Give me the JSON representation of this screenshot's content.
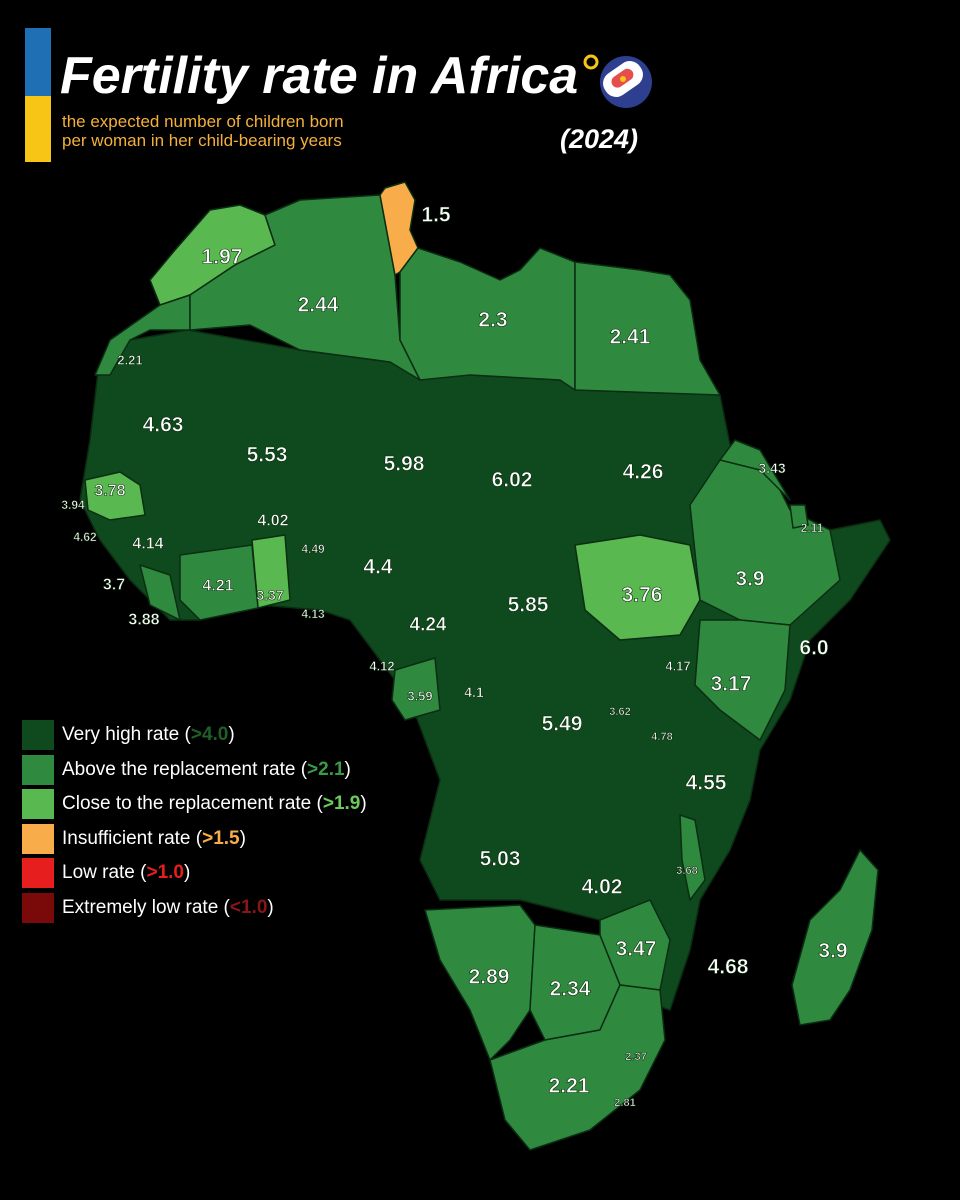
{
  "header": {
    "title": "Fertility rate in Africa",
    "subtitle": "the expected number of children born\nper woman in her child-bearing years",
    "year": "(2024)",
    "icon": "pacifier-icon"
  },
  "colors": {
    "very_high": "#0f4a1f",
    "above_replacement": "#2f8a3f",
    "close_replacement": "#5ab851",
    "insufficient": "#f9ad4a",
    "low": "#e61e1e",
    "extremely_low": "#7a0a0a",
    "border": "#0b2d12",
    "flag_blue": "#1f6fb4",
    "flag_yellow": "#f6c515"
  },
  "legend": [
    {
      "label": "Very high rate (",
      "threshold": ">4.0",
      "close": ")",
      "color": "#0f4a1f",
      "thr_color": "#1f5f2a"
    },
    {
      "label": "Above the replacement rate (",
      "threshold": ">2.1",
      "close": ")",
      "color": "#2f8a3f",
      "thr_color": "#3a9a48"
    },
    {
      "label": "Close to the replacement rate (",
      "threshold": ">1.9",
      "close": ")",
      "color": "#5ab851",
      "thr_color": "#6cc95d"
    },
    {
      "label": "Insufficient rate (",
      "threshold": ">1.5",
      "close": ")",
      "color": "#f9ad4a",
      "thr_color": "#f9ad4a"
    },
    {
      "label": "Low rate (",
      "threshold": ">1.0",
      "close": ")",
      "color": "#e61e1e",
      "thr_color": "#e61e1e"
    },
    {
      "label": "Extremely low rate (",
      "threshold": "<1.0",
      "close": ")",
      "color": "#7a0a0a",
      "thr_color": "#8a1515"
    }
  ],
  "map_labels": [
    {
      "name": "tunisia",
      "text": "1.5"
    },
    {
      "name": "morocco",
      "text": "1.97"
    },
    {
      "name": "algeria",
      "text": "2.44"
    },
    {
      "name": "libya",
      "text": "2.3"
    },
    {
      "name": "egypt",
      "text": "2.41"
    },
    {
      "name": "western-sahara",
      "text": "2.21"
    },
    {
      "name": "mauritania",
      "text": "4.63"
    },
    {
      "name": "mali",
      "text": "5.53"
    },
    {
      "name": "niger",
      "text": "5.98"
    },
    {
      "name": "chad",
      "text": "6.02"
    },
    {
      "name": "sudan",
      "text": "4.26"
    },
    {
      "name": "eritrea",
      "text": "3.43"
    },
    {
      "name": "djibouti",
      "text": "2.11"
    },
    {
      "name": "senegal",
      "text": "3.78"
    },
    {
      "name": "gambia",
      "text": "3.94"
    },
    {
      "name": "guinea-bissau",
      "text": "4.62"
    },
    {
      "name": "guinea",
      "text": "4.14"
    },
    {
      "name": "sierra-leone",
      "text": "3.7"
    },
    {
      "name": "liberia",
      "text": "3.88"
    },
    {
      "name": "burkina-faso",
      "text": "4.02"
    },
    {
      "name": "ivory-coast",
      "text": "4.21"
    },
    {
      "name": "ghana",
      "text": "3.37"
    },
    {
      "name": "togo",
      "text": "4.49"
    },
    {
      "name": "benin",
      "text": "4.13"
    },
    {
      "name": "nigeria",
      "text": "4.4"
    },
    {
      "name": "cameroon",
      "text": "4.24"
    },
    {
      "name": "central-african-republic",
      "text": "5.85"
    },
    {
      "name": "south-sudan",
      "text": "3.76"
    },
    {
      "name": "ethiopia",
      "text": "3.9"
    },
    {
      "name": "somalia",
      "text": "6.0"
    },
    {
      "name": "equatorial-guinea",
      "text": "4.12"
    },
    {
      "name": "gabon",
      "text": "3.59"
    },
    {
      "name": "congo",
      "text": "4.1"
    },
    {
      "name": "dr-congo",
      "text": "5.49"
    },
    {
      "name": "uganda",
      "text": "4.17"
    },
    {
      "name": "kenya",
      "text": "3.17"
    },
    {
      "name": "rwanda",
      "text": "3.62"
    },
    {
      "name": "burundi",
      "text": "4.78"
    },
    {
      "name": "tanzania",
      "text": "4.55"
    },
    {
      "name": "angola",
      "text": "5.03"
    },
    {
      "name": "zambia",
      "text": "4.02"
    },
    {
      "name": "malawi",
      "text": "3.68"
    },
    {
      "name": "mozambique",
      "text": "4.68"
    },
    {
      "name": "madagascar",
      "text": "3.9"
    },
    {
      "name": "zimbabwe",
      "text": "3.47"
    },
    {
      "name": "namibia",
      "text": "2.89"
    },
    {
      "name": "botswana",
      "text": "2.34"
    },
    {
      "name": "south-africa",
      "text": "2.21"
    },
    {
      "name": "eswatini",
      "text": "2.37"
    },
    {
      "name": "lesotho",
      "text": "2.81"
    }
  ]
}
